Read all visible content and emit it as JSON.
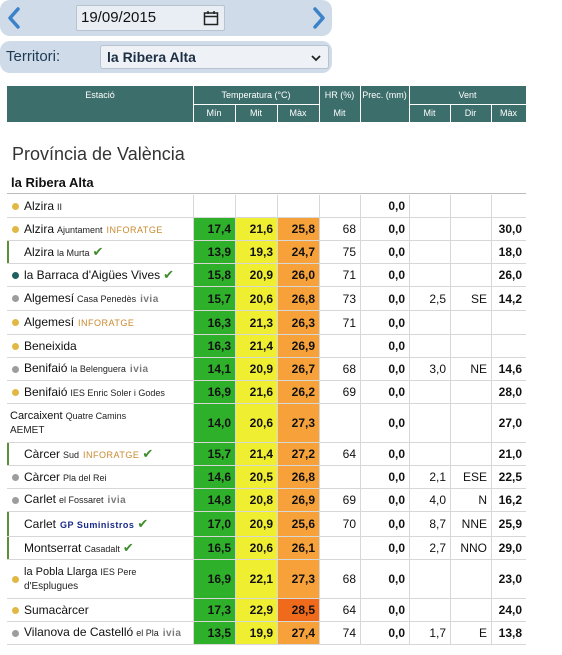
{
  "date": "19/09/2015",
  "territory": {
    "label": "Territori:",
    "selected": "la Ribera Alta"
  },
  "header": {
    "station": "Estació",
    "temperature": "Temperatura (°C)",
    "hr": "HR (%)",
    "prec": "Prec. (mm)",
    "wind": "Vent",
    "t_min": "Mín",
    "t_mit": "Mit",
    "t_max": "Màx",
    "hr_mit": "Mit",
    "w_mit": "Mit",
    "w_dir": "Dir",
    "w_max": "Màx"
  },
  "province": "Província de València",
  "region": "la Ribera Alta",
  "colors": {
    "header_bg": "#3c6e6b",
    "min_bg": "#2fb02a",
    "mit_bg": "#f0ee30",
    "max_bg": "#f7a13a",
    "max_hot_bg": "#f06a1c",
    "dot_yellow": "#e1b844",
    "dot_grey": "#9d9d9d",
    "dot_teal": "#1f6160",
    "check_green": "#3e8d2a"
  },
  "rows": [
    {
      "name": "Alzira",
      "sub": "II",
      "brand": "",
      "check": false,
      "dot": "yellow",
      "bar": false,
      "tmin": "",
      "tmit": "",
      "tmax": "",
      "hr": "",
      "prec": "0,0",
      "wmit": "",
      "wdir": "",
      "wmax": ""
    },
    {
      "name": "Alzira",
      "sub": "Ajuntament",
      "brand": "INFORATGE",
      "check": false,
      "dot": "yellow",
      "bar": false,
      "tmin": "17,4",
      "tmit": "21,6",
      "tmax": "25,8",
      "hr": "68",
      "prec": "0,0",
      "wmit": "",
      "wdir": "",
      "wmax": "30,0"
    },
    {
      "name": "Alzira",
      "sub": "la Murta",
      "brand": "",
      "check": true,
      "dot": "",
      "bar": true,
      "tmin": "13,9",
      "tmit": "19,3",
      "tmax": "24,7",
      "hr": "75",
      "prec": "0,0",
      "wmit": "",
      "wdir": "",
      "wmax": "18,0"
    },
    {
      "name": "la Barraca d'Aigües Vives",
      "sub": "",
      "brand": "",
      "check": true,
      "dot": "teal",
      "bar": false,
      "tmin": "15,8",
      "tmit": "20,9",
      "tmax": "26,0",
      "hr": "71",
      "prec": "0,0",
      "wmit": "",
      "wdir": "",
      "wmax": "26,0"
    },
    {
      "name": "Algemesí",
      "sub": "Casa Penedès",
      "brand": "ivia",
      "check": false,
      "dot": "grey",
      "bar": false,
      "tmin": "15,7",
      "tmit": "20,6",
      "tmax": "26,8",
      "hr": "73",
      "prec": "0,0",
      "wmit": "2,5",
      "wdir": "SE",
      "wmax": "14,2"
    },
    {
      "name": "Algemesí",
      "sub": "",
      "brand": "INFORATGE",
      "check": false,
      "dot": "yellow",
      "bar": false,
      "tmin": "16,3",
      "tmit": "21,3",
      "tmax": "26,3",
      "hr": "71",
      "prec": "0,0",
      "wmit": "",
      "wdir": "",
      "wmax": ""
    },
    {
      "name": "Beneixida",
      "sub": "",
      "brand": "",
      "check": false,
      "dot": "yellow",
      "bar": false,
      "tmin": "16,3",
      "tmit": "21,4",
      "tmax": "26,9",
      "hr": "",
      "prec": "0,0",
      "wmit": "",
      "wdir": "",
      "wmax": ""
    },
    {
      "name": "Benifaió",
      "sub": "la Belenguera",
      "brand": "ivia",
      "check": false,
      "dot": "grey",
      "bar": false,
      "tmin": "14,1",
      "tmit": "20,9",
      "tmax": "26,7",
      "hr": "68",
      "prec": "0,0",
      "wmit": "3,0",
      "wdir": "NE",
      "wmax": "14,6"
    },
    {
      "name": "Benifaió",
      "sub": "IES Enric Soler i Godes",
      "brand": "",
      "check": false,
      "dot": "yellow",
      "bar": false,
      "tmin": "16,9",
      "tmit": "21,6",
      "tmax": "26,2",
      "hr": "69",
      "prec": "0,0",
      "wmit": "",
      "wdir": "",
      "wmax": "28,0"
    },
    {
      "name": "Carcaixent",
      "sub": "Quatre Camins",
      "line2": "AEMET",
      "brand": "",
      "check": false,
      "dot": "",
      "bar": false,
      "tmin": "14,0",
      "tmit": "20,6",
      "tmax": "27,3",
      "hr": "",
      "prec": "0,0",
      "wmit": "",
      "wdir": "",
      "wmax": "27,0"
    },
    {
      "name": "Càrcer",
      "sub": "Sud",
      "brand": "INFORATGE",
      "check": true,
      "dot": "",
      "bar": true,
      "tmin": "15,7",
      "tmit": "21,4",
      "tmax": "27,2",
      "hr": "64",
      "prec": "0,0",
      "wmit": "",
      "wdir": "",
      "wmax": "21,0"
    },
    {
      "name": "Càrcer",
      "sub": "Pla del Rei",
      "brand": "",
      "check": false,
      "dot": "grey",
      "bar": false,
      "tmin": "14,6",
      "tmit": "20,5",
      "tmax": "26,8",
      "hr": "",
      "prec": "0,0",
      "wmit": "2,1",
      "wdir": "ESE",
      "wmax": "22,5"
    },
    {
      "name": "Carlet",
      "sub": "el Fossaret",
      "brand": "ivia",
      "check": false,
      "dot": "grey",
      "bar": false,
      "tmin": "14,8",
      "tmit": "20,8",
      "tmax": "26,9",
      "hr": "69",
      "prec": "0,0",
      "wmit": "4,0",
      "wdir": "N",
      "wmax": "16,2"
    },
    {
      "name": "Carlet",
      "sub": "",
      "brand": "GP Suministros",
      "check": true,
      "dot": "",
      "bar": true,
      "tmin": "17,0",
      "tmit": "20,9",
      "tmax": "25,6",
      "hr": "70",
      "prec": "0,0",
      "wmit": "8,7",
      "wdir": "NNE",
      "wmax": "25,9"
    },
    {
      "name": "Montserrat",
      "sub": "Casadalt",
      "brand": "",
      "check": true,
      "dot": "",
      "bar": true,
      "tmin": "16,5",
      "tmit": "20,6",
      "tmax": "26,1",
      "hr": "",
      "prec": "0,0",
      "wmit": "2,7",
      "wdir": "NNO",
      "wmax": "29,0"
    },
    {
      "name": "la Pobla Llarga",
      "sub": "IES Pere",
      "line2": "d'Esplugues",
      "brand": "",
      "check": false,
      "dot": "yellow",
      "bar": false,
      "tmin": "16,9",
      "tmit": "22,1",
      "tmax": "27,3",
      "hr": "68",
      "prec": "0,0",
      "wmit": "",
      "wdir": "",
      "wmax": "23,0"
    },
    {
      "name": "Sumacàrcer",
      "sub": "",
      "brand": "",
      "check": false,
      "dot": "yellow",
      "bar": false,
      "tmin": "17,3",
      "tmit": "22,9",
      "tmax": "28,5",
      "hr": "64",
      "prec": "0,0",
      "wmit": "",
      "wdir": "",
      "wmax": "24,0"
    },
    {
      "name": "Vilanova de Castelló",
      "sub": "el Pla",
      "brand": "ivia",
      "check": false,
      "dot": "grey",
      "bar": false,
      "tmin": "13,5",
      "tmit": "19,9",
      "tmax": "27,4",
      "hr": "74",
      "prec": "0,0",
      "wmit": "1,7",
      "wdir": "E",
      "wmax": "13,8"
    }
  ]
}
